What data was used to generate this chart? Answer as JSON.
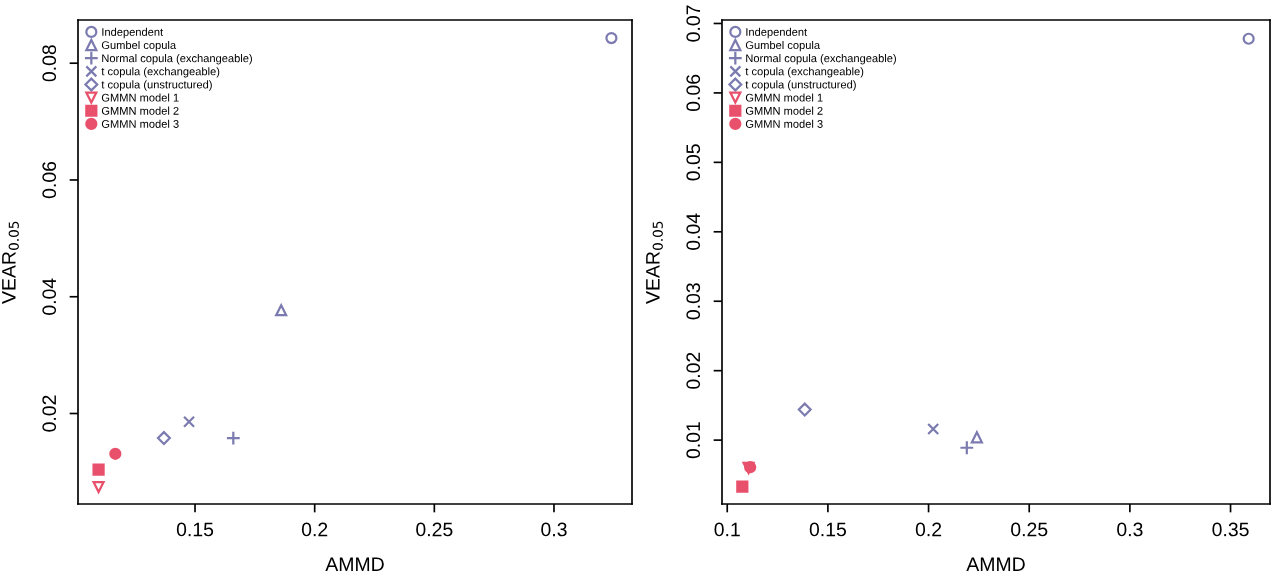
{
  "chart_data": [
    {
      "type": "scatter",
      "xlabel": "AMMD",
      "ylabel": "VEAR$_{0.05}$",
      "xlim": [
        0.1011,
        0.3326
      ],
      "ylim": [
        0.0045,
        0.0874
      ],
      "xticks": [
        0.15,
        0.2,
        0.25,
        0.3
      ],
      "yticks": [
        0.02,
        0.04,
        0.06,
        0.08
      ],
      "grid": false,
      "legend": "top left",
      "series": [
        {
          "name": "Independent",
          "color": "#7b7bb0",
          "marker": "circle",
          "x": [
            0.324
          ],
          "values": [
            0.0843
          ]
        },
        {
          "name": "Gumbel copula",
          "color": "#7b7bb0",
          "marker": "triangle",
          "x": [
            0.186
          ],
          "values": [
            0.0377
          ]
        },
        {
          "name": "Normal copula (exchangeable)",
          "color": "#7b7bb0",
          "marker": "plus",
          "x": [
            0.166
          ],
          "values": [
            0.0158
          ]
        },
        {
          "name": "t copula (exchangeable)",
          "color": "#7b7bb0",
          "marker": "cross",
          "x": [
            0.1475
          ],
          "values": [
            0.0186
          ]
        },
        {
          "name": "t copula (unstructured)",
          "color": "#7b7bb0",
          "marker": "diamond",
          "x": [
            0.137
          ],
          "values": [
            0.0158
          ]
        },
        {
          "name": "GMMN model 1",
          "color": "#e8506b",
          "marker": "triangle_down",
          "x": [
            0.1097
          ],
          "values": [
            0.0074
          ]
        },
        {
          "name": "GMMN model 2",
          "color": "#e8506b",
          "marker": "square",
          "x": [
            0.1097
          ],
          "values": [
            0.0104
          ]
        },
        {
          "name": "GMMN model 3",
          "color": "#e8506b",
          "marker": "circle_filled",
          "x": [
            0.1167
          ],
          "values": [
            0.0131
          ]
        }
      ]
    },
    {
      "type": "scatter",
      "xlabel": "AMMD",
      "ylabel": "VEAR$_{0.05}$",
      "xlim": [
        0.0974,
        0.3696
      ],
      "ylim": [
        0.0008,
        0.0705
      ],
      "xticks": [
        0.1,
        0.15,
        0.2,
        0.25,
        0.3,
        0.35
      ],
      "yticks": [
        0.01,
        0.02,
        0.03,
        0.04,
        0.05,
        0.06,
        0.07
      ],
      "grid": false,
      "legend": "top left",
      "series": [
        {
          "name": "Independent",
          "color": "#7b7bb0",
          "marker": "circle",
          "x": [
            0.359
          ],
          "values": [
            0.0678
          ]
        },
        {
          "name": "Gumbel copula",
          "color": "#7b7bb0",
          "marker": "triangle",
          "x": [
            0.224
          ],
          "values": [
            0.0104
          ]
        },
        {
          "name": "Normal copula (exchangeable)",
          "color": "#7b7bb0",
          "marker": "plus",
          "x": [
            0.219
          ],
          "values": [
            0.0089
          ]
        },
        {
          "name": "t copula (exchangeable)",
          "color": "#7b7bb0",
          "marker": "cross",
          "x": [
            0.2023
          ],
          "values": [
            0.0116
          ]
        },
        {
          "name": "t copula (unstructured)",
          "color": "#7b7bb0",
          "marker": "diamond",
          "x": [
            0.1385
          ],
          "values": [
            0.0144
          ]
        },
        {
          "name": "GMMN model 1",
          "color": "#e8506b",
          "marker": "triangle_down",
          "x": [
            0.1106
          ],
          "values": [
            0.006
          ]
        },
        {
          "name": "GMMN model 2",
          "color": "#e8506b",
          "marker": "square",
          "x": [
            0.1075
          ],
          "values": [
            0.0033
          ]
        },
        {
          "name": "GMMN model 3",
          "color": "#e8506b",
          "marker": "circle_filled",
          "x": [
            0.1114
          ],
          "values": [
            0.0061
          ]
        }
      ]
    }
  ]
}
